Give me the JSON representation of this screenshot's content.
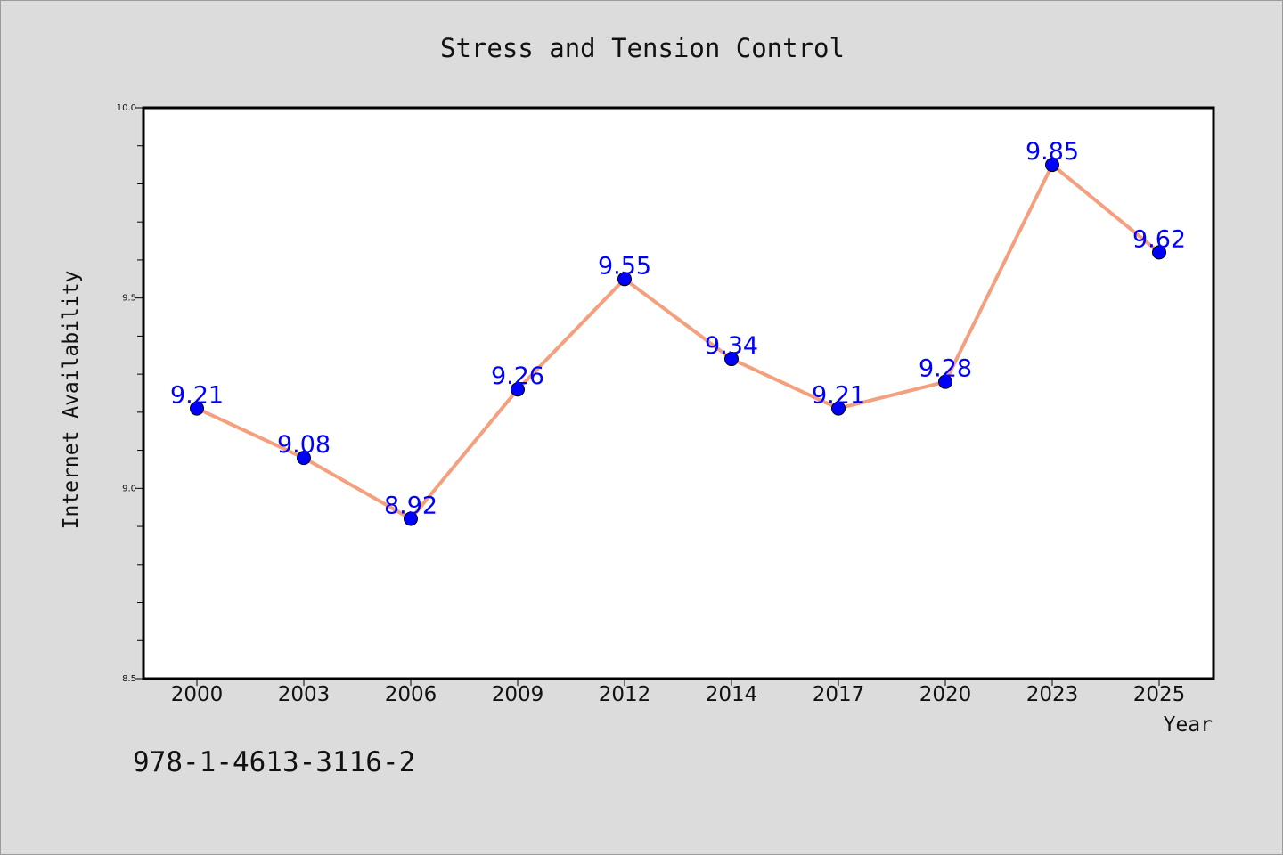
{
  "chart_data": {
    "type": "line",
    "title": "Stress and Tension Control",
    "xlabel": "Year",
    "ylabel": "Internet Availability",
    "categories": [
      "2000",
      "2003",
      "2006",
      "2009",
      "2012",
      "2014",
      "2017",
      "2020",
      "2023",
      "2025"
    ],
    "series": [
      {
        "values": [
          9.21,
          9.08,
          8.92,
          9.26,
          9.55,
          9.34,
          9.21,
          9.28,
          9.85,
          9.62
        ],
        "labels": [
          "9.21",
          "9.08",
          "8.92",
          "9.26",
          "9.55",
          "9.34",
          "9.21",
          "9.28",
          "9.85",
          "9.62"
        ]
      }
    ],
    "ylim": [
      8.5,
      10.0
    ],
    "yticks": [
      "8.5",
      "9.0",
      "9.5",
      "10.0"
    ],
    "grid": false,
    "line_color": "#f4a07e",
    "marker_color": "#0000ff",
    "label_color": "#0000ff",
    "background_color": "#dcdcdc",
    "plot_background_color": "#ffffff"
  },
  "footer": {
    "isbn": "978-1-4613-3116-2"
  }
}
